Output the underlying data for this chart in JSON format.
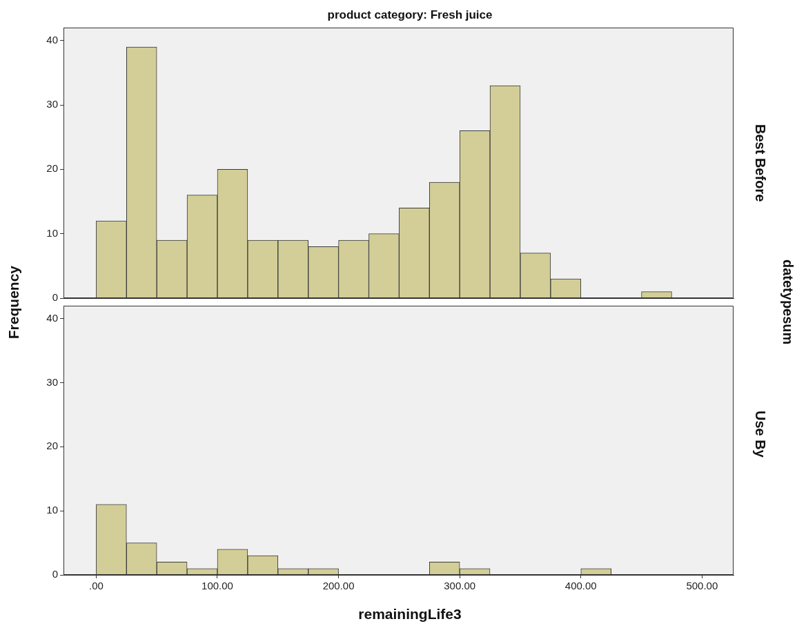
{
  "chart_data": [
    {
      "type": "histogram",
      "title": "product category: Fresh juice",
      "ylabel": "Frequency",
      "y2label": "Best Before",
      "annotations": [
        "datetypesum"
      ],
      "color": "#d3ce97",
      "tick_labels": "y",
      "bins": [
        0,
        25,
        50,
        75,
        100,
        125,
        150,
        175,
        200,
        225,
        250,
        275,
        300,
        325,
        350,
        375,
        400,
        425,
        450,
        475
      ],
      "values": [
        12,
        39,
        9,
        16,
        20,
        9,
        9,
        8,
        9,
        10,
        14,
        18,
        26,
        33,
        7,
        3,
        0,
        0,
        1
      ],
      "xlim": [
        -27,
        526
      ],
      "ylim": [
        0,
        42
      ],
      "yticks": [
        0,
        10,
        20,
        30,
        40
      ]
    },
    {
      "type": "histogram",
      "xlabel": "remainingLife3",
      "y2label": "Use By",
      "color": "#d3ce97",
      "bins": [
        0,
        25,
        50,
        75,
        100,
        125,
        150,
        175,
        200,
        225,
        250,
        275,
        300,
        325,
        350,
        375,
        400,
        425
      ],
      "values": [
        11,
        5,
        2,
        1,
        4,
        3,
        1,
        1,
        0,
        0,
        0,
        2,
        1,
        0,
        0,
        0,
        1
      ],
      "xlim": [
        -27,
        526
      ],
      "xticks": [
        {
          "value": 0,
          "label": ".00"
        },
        {
          "value": 100,
          "label": "100.00"
        },
        {
          "value": 200,
          "label": "200.00"
        },
        {
          "value": 300,
          "label": "300.00"
        },
        {
          "value": 400,
          "label": "400.00"
        },
        {
          "value": 500,
          "label": "500.00"
        }
      ],
      "ylim": [
        0,
        42
      ],
      "yticks": [
        0,
        10,
        20,
        30,
        40
      ]
    }
  ]
}
